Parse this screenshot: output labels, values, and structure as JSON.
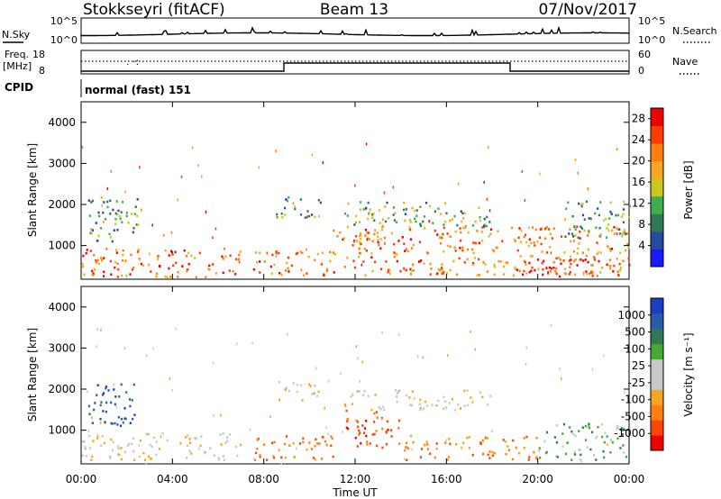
{
  "header": {
    "station": "Stokkseyri (fitACF)",
    "beam": "Beam 13",
    "date": "07/Nov/2017"
  },
  "status_panels": {
    "nsky_label": "N.Sky",
    "nsky_ticks": [
      "10^5",
      "10^0"
    ],
    "nsearch_label": "N.Search",
    "nsearch_ticks": [
      "10^5",
      "10^0"
    ],
    "freq_label_1": "Freq.",
    "freq_label_2": "[MHz]",
    "freq_ticks": [
      "18",
      "8"
    ],
    "nave_label": "Nave",
    "nave_ticks": [
      "60",
      "0"
    ],
    "cpid_label": "CPID",
    "cpid_value": "normal (fast) 151"
  },
  "colors": {
    "power_scale": [
      "#1a1aff",
      "#2a4aa0",
      "#2f7a55",
      "#3fae4f",
      "#c8c81e",
      "#f5a623",
      "#ff7f0e",
      "#ff3c00",
      "#ee0000"
    ],
    "velocity_scale": [
      "#ee0000",
      "#ff4500",
      "#ff7f0e",
      "#f5a623",
      "#c8c8c8",
      "#c8c8c8",
      "#44aa33",
      "#2f7a55",
      "#2a5aa8",
      "#1a3fc0"
    ]
  },
  "chart_data": [
    {
      "type": "heatmap",
      "name": "Power",
      "ylabel": "Slant Range [km]",
      "xlabel": "Time UT",
      "x_ticks": [
        "00:00",
        "04:00",
        "08:00",
        "12:00",
        "16:00",
        "20:00",
        "00:00"
      ],
      "x_range_hours": [
        0,
        24
      ],
      "y_ticks": [
        1000,
        2000,
        3000,
        4000
      ],
      "y_range_km": [
        180,
        4500
      ],
      "colorbar": {
        "label": "Power [dB]",
        "ticks": [
          4,
          8,
          12,
          16,
          20,
          24,
          28
        ],
        "range": [
          0,
          30
        ]
      },
      "echo_regions": [
        {
          "t0": 0.0,
          "t1": 7.0,
          "r0": 250,
          "r1": 950,
          "level": 24
        },
        {
          "t0": 0.3,
          "t1": 2.5,
          "r0": 1100,
          "r1": 2200,
          "level": 10
        },
        {
          "t0": 7.5,
          "t1": 11.0,
          "r0": 300,
          "r1": 900,
          "level": 22
        },
        {
          "t0": 8.5,
          "t1": 10.5,
          "r0": 1700,
          "r1": 2200,
          "level": 8
        },
        {
          "t0": 11.0,
          "t1": 24.0,
          "r0": 300,
          "r1": 1500,
          "level": 22
        },
        {
          "t0": 11.5,
          "t1": 18.0,
          "r0": 1500,
          "r1": 2100,
          "level": 12
        },
        {
          "t0": 19.0,
          "t1": 24.0,
          "r0": 250,
          "r1": 700,
          "level": 28
        },
        {
          "t0": 21.0,
          "t1": 24.0,
          "r0": 1200,
          "r1": 2100,
          "level": 10
        }
      ]
    },
    {
      "type": "heatmap",
      "name": "Velocity",
      "ylabel": "Slant Range [km]",
      "xlabel": "Time UT",
      "x_ticks": [
        "00:00",
        "04:00",
        "08:00",
        "12:00",
        "16:00",
        "20:00",
        "00:00"
      ],
      "x_range_hours": [
        0,
        24
      ],
      "y_ticks": [
        1000,
        2000,
        3000,
        4000
      ],
      "y_range_km": [
        180,
        4500
      ],
      "colorbar": {
        "label": "Velocity [m s⁻¹]",
        "ticks": [
          "1000",
          "500",
          "100",
          "25",
          "-25",
          "-100",
          "-500",
          "-1000"
        ]
      },
      "echo_regions": [
        {
          "t0": 0.0,
          "t1": 7.0,
          "r0": 300,
          "r1": 950,
          "level": 0
        },
        {
          "t0": 0.3,
          "t1": 2.5,
          "r0": 1100,
          "r1": 2200,
          "level": 500
        },
        {
          "t0": 8.5,
          "t1": 10.5,
          "r0": 1700,
          "r1": 2200,
          "level": 0
        },
        {
          "t0": 7.5,
          "t1": 11.0,
          "r0": 300,
          "r1": 900,
          "level": -300
        },
        {
          "t0": 11.5,
          "t1": 14.0,
          "r0": 600,
          "r1": 1500,
          "level": -800
        },
        {
          "t0": 14.0,
          "t1": 20.0,
          "r0": 300,
          "r1": 900,
          "level": -300
        },
        {
          "t0": 11.5,
          "t1": 18.0,
          "r0": 1500,
          "r1": 2000,
          "level": 0
        },
        {
          "t0": 20.0,
          "t1": 24.0,
          "r0": 300,
          "r1": 1200,
          "level": 200
        }
      ]
    }
  ]
}
